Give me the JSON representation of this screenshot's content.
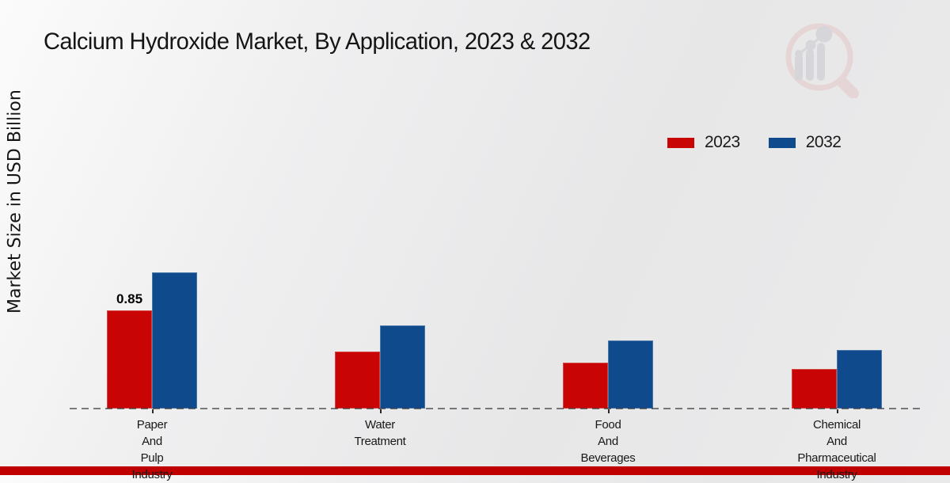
{
  "header": {
    "title": "Calcium Hydroxide Market, By Application, 2023 & 2032"
  },
  "axes": {
    "y_label": "Market Size in USD Billion"
  },
  "legend": {
    "items": [
      {
        "label": "2023",
        "color": "#c80404"
      },
      {
        "label": "2032",
        "color": "#0e4a8c"
      }
    ]
  },
  "chart_data": {
    "type": "bar",
    "title": "Calcium Hydroxide Market, By Application, 2023 & 2032",
    "ylabel": "Market Size in USD Billion",
    "xlabel": "",
    "categories": [
      "Paper And Pulp Industry",
      "Water Treatment",
      "Food And Beverages",
      "Chemical And Pharmaceutical Industry"
    ],
    "category_label_lines": [
      [
        "Paper",
        "And",
        "Pulp",
        "Industry"
      ],
      [
        "Water",
        "Treatment"
      ],
      [
        "Food",
        "And",
        "Beverages"
      ],
      [
        "Chemical",
        "And",
        "Pharmaceutical",
        "Industry"
      ]
    ],
    "series": [
      {
        "name": "2023",
        "color": "#c80404",
        "values": [
          0.85,
          0.49,
          0.4,
          0.34
        ]
      },
      {
        "name": "2032",
        "color": "#0e4a8c",
        "values": [
          1.18,
          0.72,
          0.59,
          0.51
        ]
      }
    ],
    "bar_value_labels": [
      {
        "series": "2023",
        "category": "Paper And Pulp Industry",
        "text": "0.85"
      }
    ],
    "ylim": [
      0,
      1.3
    ],
    "grid": false,
    "legend_position": "top-right",
    "x_axis_style": "dashed-baseline-only"
  },
  "footer": {
    "bar_color": "#c00000"
  },
  "watermark": {
    "name": "market-research-future-logo"
  }
}
